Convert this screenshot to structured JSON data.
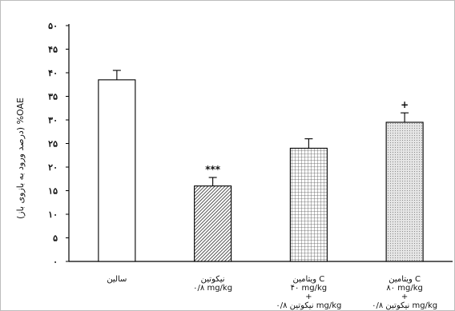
{
  "chart_data": {
    "type": "bar",
    "ylabel": "OAE% (درصد ورود به بازوی باز)",
    "ylim": [
      0,
      50
    ],
    "yticks": [
      {
        "value": 0,
        "label": "۰"
      },
      {
        "value": 5,
        "label": "۵"
      },
      {
        "value": 10,
        "label": "۱۰"
      },
      {
        "value": 15,
        "label": "۱۵"
      },
      {
        "value": 20,
        "label": "۲۰"
      },
      {
        "value": 25,
        "label": "۲۵"
      },
      {
        "value": 30,
        "label": "۳۰"
      },
      {
        "value": 35,
        "label": "۳۵"
      },
      {
        "value": 40,
        "label": "۴۰"
      },
      {
        "value": 45,
        "label": "۴۵"
      },
      {
        "value": 50,
        "label": "۵۰"
      }
    ],
    "grid": false,
    "bars": [
      {
        "category_lines": [
          "سالین"
        ],
        "value": 38.5,
        "error": 2.0,
        "pattern": "white",
        "sig": ""
      },
      {
        "category_lines": [
          "نیکوتین",
          "۰/۸ mg/kg"
        ],
        "value": 16,
        "error": 1.8,
        "pattern": "diagonal",
        "sig": "***"
      },
      {
        "category_lines": [
          "ویتامین C",
          "۴۰ mg/kg",
          "+",
          "نیکوتین ۰/۸ mg/kg"
        ],
        "value": 24,
        "error": 2.0,
        "pattern": "grid",
        "sig": ""
      },
      {
        "category_lines": [
          "ویتامین C",
          "۸۰ mg/kg",
          "+",
          "نیکوتین ۰/۸ mg/kg"
        ],
        "value": 29.5,
        "error": 2.0,
        "pattern": "dots",
        "sig": "+"
      }
    ],
    "colors": {
      "axis": "#000000",
      "bar_edge": "#000000",
      "fill": "#ffffff"
    }
  }
}
